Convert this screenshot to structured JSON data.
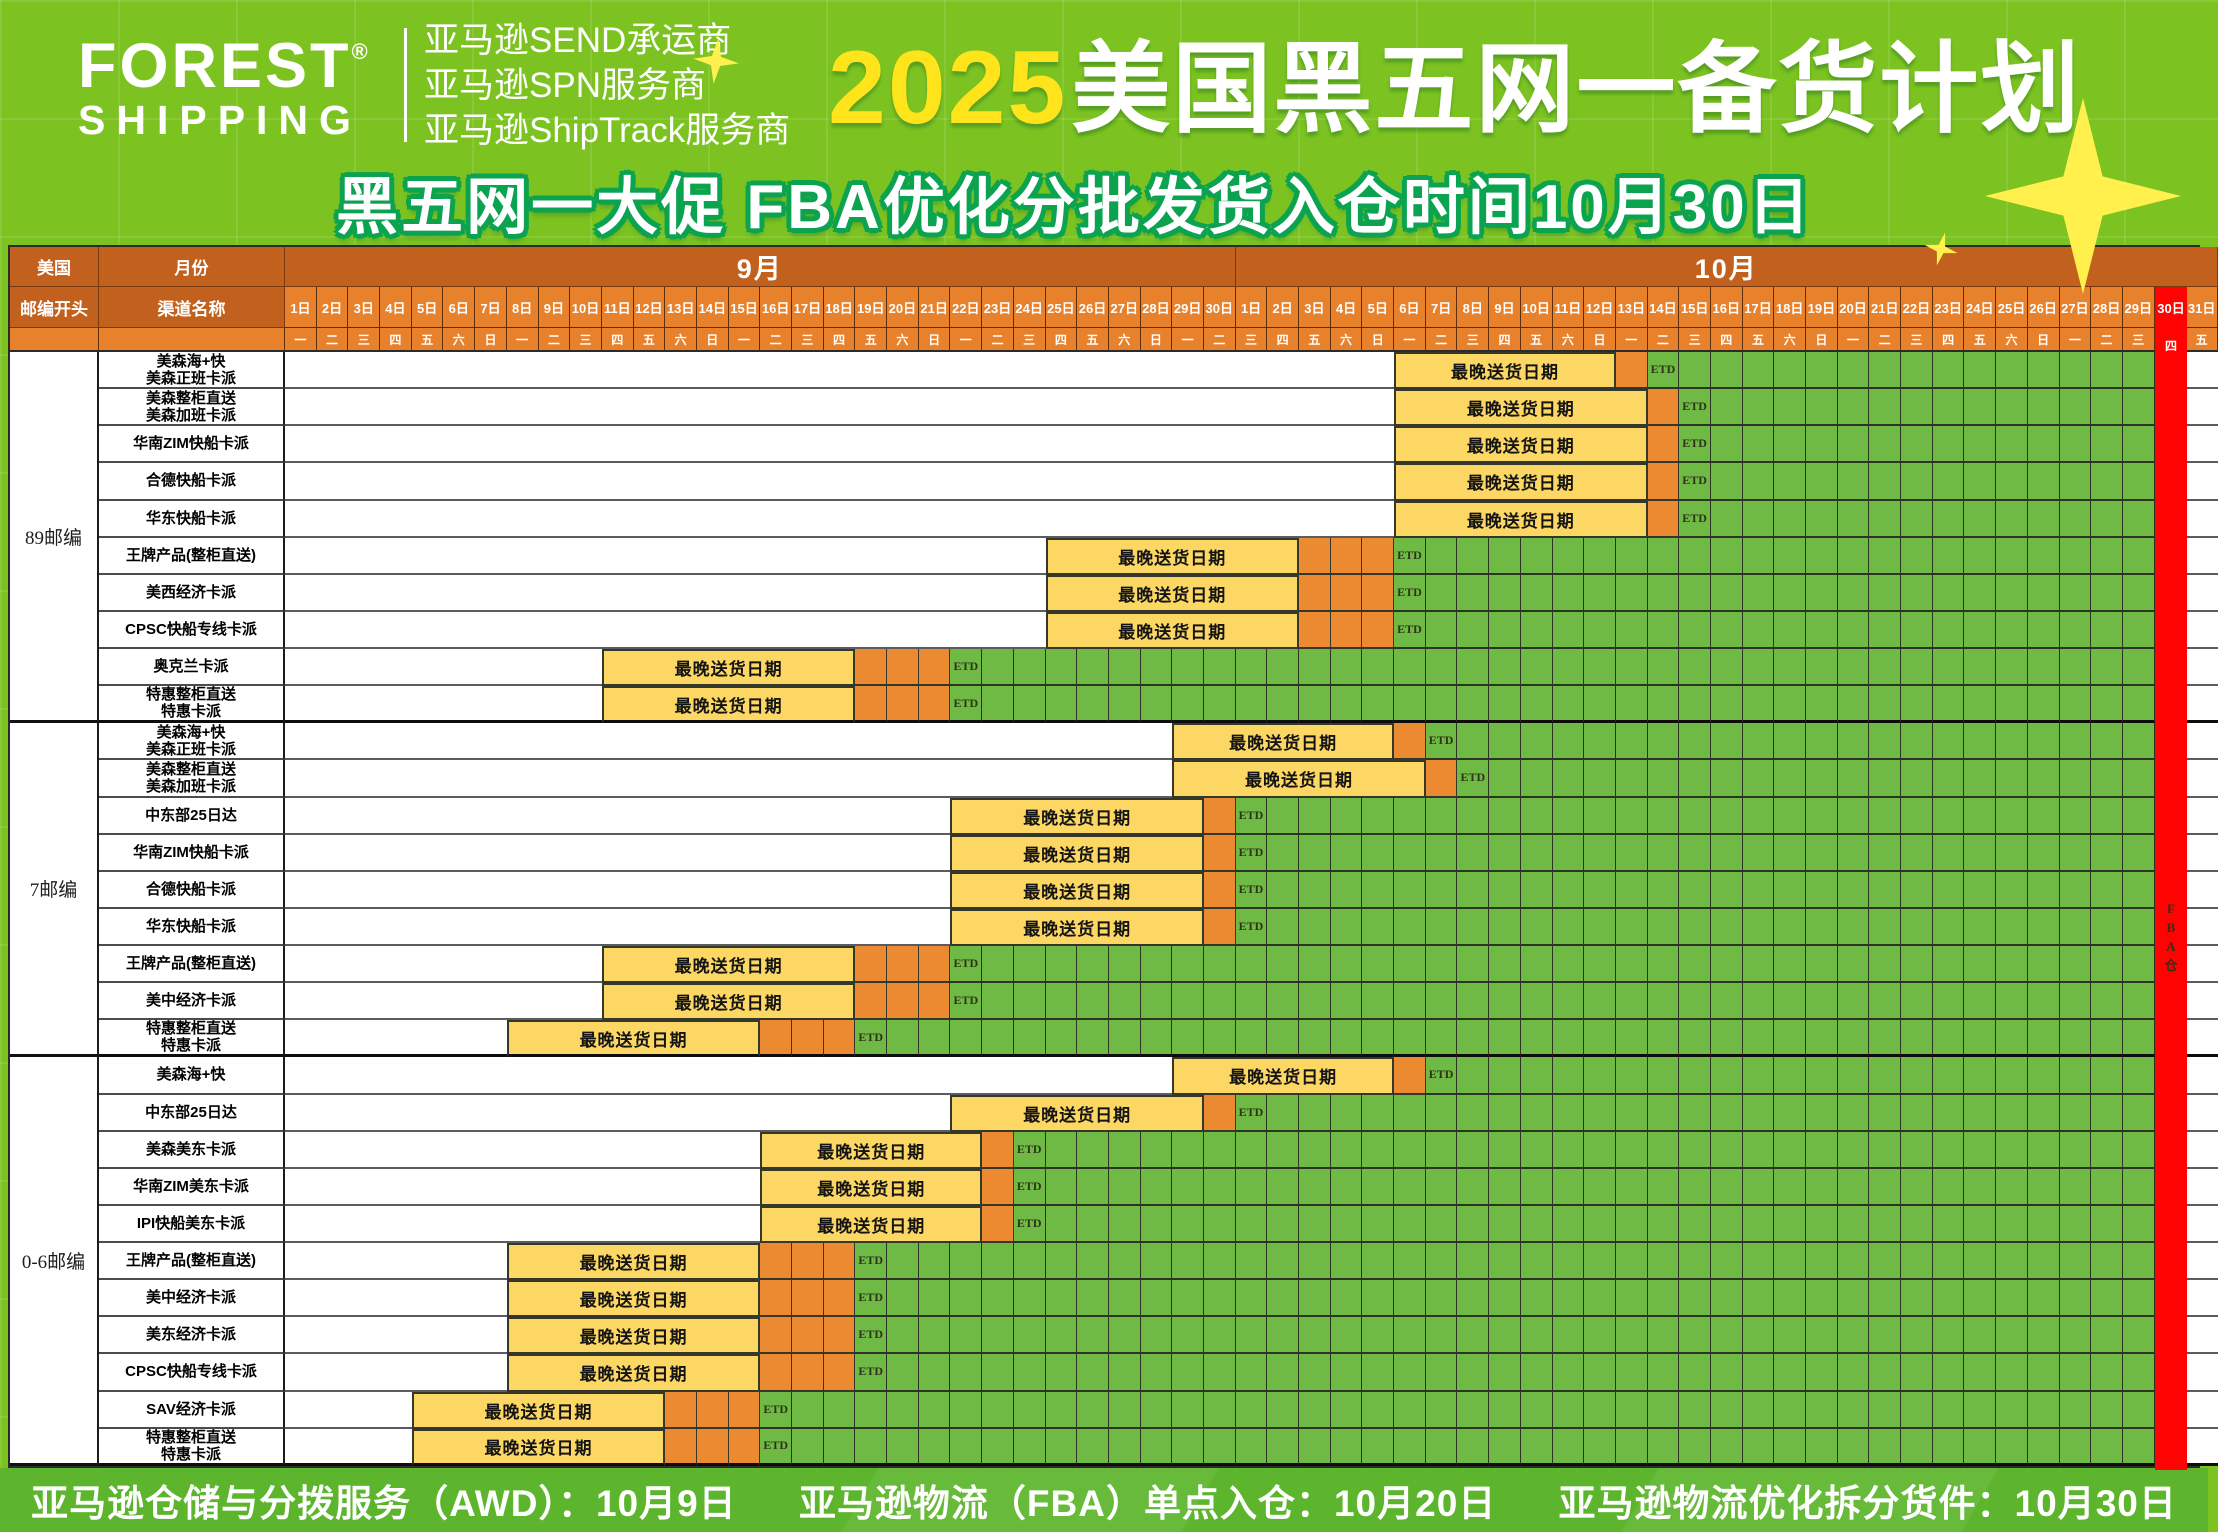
{
  "header": {
    "logo": {
      "line1": "FOREST",
      "line2": "SHIPPING",
      "reg": "®"
    },
    "services": [
      "亚马逊SEND承运商",
      "亚马逊SPN服务商",
      "亚马逊ShipTrack服务商"
    ],
    "title": {
      "year": "2025",
      "text": "美国黑五网一备货计划"
    },
    "subtitle": "黑五网一大促  FBA优化分批发货入仓时间10月30日"
  },
  "footer": {
    "items": [
      "亚马逊仓储与分拨服务（AWD）：10月9日",
      "亚马逊物流（FBA）单点入仓：10月20日",
      "亚马逊物流优化拆分货件：10月30日"
    ]
  },
  "colors": {
    "background_green": "#7cc321",
    "header_orange_dark": "#c2601d",
    "header_orange": "#e8812c",
    "bar_yellow": "#fcd763",
    "bar_orange": "#ec8a31",
    "cell_green": "#6eba45",
    "deadline_red": "#ff0202",
    "title_yellow": "#ffe41c",
    "footer_green": "#5db52d"
  },
  "chart_data": {
    "type": "table",
    "chart_style": "gantt",
    "title": "2025美国黑五网一备货计划",
    "subtitle": "黑五网一大促  FBA优化分批发货入仓时间10月30日",
    "corner": {
      "r1c1": "美国",
      "r1c2": "月份",
      "r2c1": "邮编开头",
      "r2c2": "渠道名称"
    },
    "labels": {
      "bar": "最晚送货日期",
      "etd": "ETD"
    },
    "months": [
      {
        "label": "9月",
        "days": 30
      },
      {
        "label": "10月",
        "days": 31
      }
    ],
    "day_labels": [
      "1日",
      "2日",
      "3日",
      "4日",
      "5日",
      "6日",
      "7日",
      "8日",
      "9日",
      "10日",
      "11日",
      "12日",
      "13日",
      "14日",
      "15日",
      "16日",
      "17日",
      "18日",
      "19日",
      "20日",
      "21日",
      "22日",
      "23日",
      "24日",
      "25日",
      "26日",
      "27日",
      "28日",
      "29日",
      "30日",
      "1日",
      "2日",
      "3日",
      "4日",
      "5日",
      "6日",
      "7日",
      "8日",
      "9日",
      "10日",
      "11日",
      "12日",
      "13日",
      "14日",
      "15日",
      "16日",
      "17日",
      "18日",
      "19日",
      "20日",
      "21日",
      "22日",
      "23日",
      "24日",
      "25日",
      "26日",
      "27日",
      "28日",
      "29日",
      "30日",
      "31日"
    ],
    "weekdays": [
      "一",
      "二",
      "三",
      "四",
      "五",
      "六",
      "日",
      "一",
      "二",
      "三",
      "四",
      "五",
      "六",
      "日",
      "一",
      "二",
      "三",
      "四",
      "五",
      "六",
      "日",
      "一",
      "二",
      "三",
      "四",
      "五",
      "六",
      "日",
      "一",
      "二",
      "三",
      "四",
      "五",
      "六",
      "日",
      "一",
      "二",
      "三",
      "四",
      "五",
      "六",
      "日",
      "一",
      "二",
      "三",
      "四",
      "五",
      "六",
      "日",
      "一",
      "二",
      "三",
      "四",
      "五",
      "六",
      "日",
      "一",
      "二",
      "三",
      "四",
      "五"
    ],
    "red_column": {
      "day_index": 59,
      "date": "10月30日",
      "vertical_label": "FBA仓"
    },
    "green_end_index": 58,
    "groups": [
      {
        "zip": "89邮编",
        "rows": [
          {
            "ch": [
              "美森海+快",
              "美森正班卡派"
            ],
            "ys": 35,
            "ye": 41,
            "os": 42,
            "oe": 42,
            "etd": 43,
            "window": "10月6日-10月12日",
            "sail": "10月13日",
            "etd_date": "10月14日"
          },
          {
            "ch": [
              "美森整柜直送",
              "美森加班卡派"
            ],
            "ys": 35,
            "ye": 42,
            "os": 43,
            "oe": 43,
            "etd": 44,
            "window": "10月6日-10月13日",
            "sail": "10月14日",
            "etd_date": "10月15日"
          },
          {
            "ch": [
              "华南ZIM快船卡派"
            ],
            "ys": 35,
            "ye": 42,
            "os": 43,
            "oe": 43,
            "etd": 44,
            "window": "10月6日-10月13日",
            "sail": "10月14日",
            "etd_date": "10月15日"
          },
          {
            "ch": [
              "合德快船卡派"
            ],
            "ys": 35,
            "ye": 42,
            "os": 43,
            "oe": 43,
            "etd": 44,
            "window": "10月6日-10月13日",
            "sail": "10月14日",
            "etd_date": "10月15日"
          },
          {
            "ch": [
              "华东快船卡派"
            ],
            "ys": 35,
            "ye": 42,
            "os": 43,
            "oe": 43,
            "etd": 44,
            "window": "10月6日-10月13日",
            "sail": "10月14日",
            "etd_date": "10月15日"
          },
          {
            "ch": [
              "王牌产品(整柜直送)"
            ],
            "ys": 24,
            "ye": 31,
            "os": 32,
            "oe": 34,
            "etd": 35,
            "window": "9月25日-10月2日",
            "sail": "10月3日-10月5日",
            "etd_date": "10月6日"
          },
          {
            "ch": [
              "美西经济卡派"
            ],
            "ys": 24,
            "ye": 31,
            "os": 32,
            "oe": 34,
            "etd": 35,
            "window": "9月25日-10月2日",
            "sail": "10月3日-10月5日",
            "etd_date": "10月6日"
          },
          {
            "ch": [
              "CPSC快船专线卡派"
            ],
            "ys": 24,
            "ye": 31,
            "os": 32,
            "oe": 34,
            "etd": 35,
            "window": "9月25日-10月2日",
            "sail": "10月3日-10月5日",
            "etd_date": "10月6日"
          },
          {
            "ch": [
              "奥克兰卡派"
            ],
            "ys": 10,
            "ye": 17,
            "os": 18,
            "oe": 20,
            "etd": 21,
            "window": "9月11日-9月18日",
            "sail": "9月19日-9月21日",
            "etd_date": "9月22日"
          },
          {
            "ch": [
              "特惠整柜直送",
              "特惠卡派"
            ],
            "ys": 10,
            "ye": 17,
            "os": 18,
            "oe": 20,
            "etd": 21,
            "window": "9月11日-9月18日",
            "sail": "9月19日-9月21日",
            "etd_date": "9月22日"
          }
        ]
      },
      {
        "zip": "7邮编",
        "rows": [
          {
            "ch": [
              "美森海+快",
              "美森正班卡派"
            ],
            "ys": 28,
            "ye": 34,
            "os": 35,
            "oe": 35,
            "etd": 36,
            "window": "9月29日-10月5日",
            "sail": "10月6日",
            "etd_date": "10月7日"
          },
          {
            "ch": [
              "美森整柜直送",
              "美森加班卡派"
            ],
            "ys": 28,
            "ye": 35,
            "os": 36,
            "oe": 36,
            "etd": 37,
            "window": "9月29日-10月6日",
            "sail": "10月7日",
            "etd_date": "10月8日"
          },
          {
            "ch": [
              "中东部25日达"
            ],
            "ys": 21,
            "ye": 28,
            "os": 29,
            "oe": 29,
            "etd": 30,
            "window": "9月22日-9月29日",
            "sail": "9月30日",
            "etd_date": "10月1日"
          },
          {
            "ch": [
              "华南ZIM快船卡派"
            ],
            "ys": 21,
            "ye": 28,
            "os": 29,
            "oe": 29,
            "etd": 30,
            "window": "9月22日-9月29日",
            "sail": "9月30日",
            "etd_date": "10月1日"
          },
          {
            "ch": [
              "合德快船卡派"
            ],
            "ys": 21,
            "ye": 28,
            "os": 29,
            "oe": 29,
            "etd": 30,
            "window": "9月22日-9月29日",
            "sail": "9月30日",
            "etd_date": "10月1日"
          },
          {
            "ch": [
              "华东快船卡派"
            ],
            "ys": 21,
            "ye": 28,
            "os": 29,
            "oe": 29,
            "etd": 30,
            "window": "9月22日-9月29日",
            "sail": "9月30日",
            "etd_date": "10月1日"
          },
          {
            "ch": [
              "王牌产品(整柜直送)"
            ],
            "ys": 10,
            "ye": 17,
            "os": 18,
            "oe": 20,
            "etd": 21,
            "window": "9月11日-9月18日",
            "sail": "9月19日-9月21日",
            "etd_date": "9月22日"
          },
          {
            "ch": [
              "美中经济卡派"
            ],
            "ys": 10,
            "ye": 17,
            "os": 18,
            "oe": 20,
            "etd": 21,
            "window": "9月11日-9月18日",
            "sail": "9月19日-9月21日",
            "etd_date": "9月22日"
          },
          {
            "ch": [
              "特惠整柜直送",
              "特惠卡派"
            ],
            "ys": 7,
            "ye": 14,
            "os": 15,
            "oe": 17,
            "etd": 18,
            "window": "9月8日-9月15日",
            "sail": "9月16日-9月18日",
            "etd_date": "9月19日"
          }
        ]
      },
      {
        "zip": "0-6邮编",
        "rows": [
          {
            "ch": [
              "美森海+快"
            ],
            "ys": 28,
            "ye": 34,
            "os": 35,
            "oe": 35,
            "etd": 36,
            "window": "9月29日-10月5日",
            "sail": "10月6日",
            "etd_date": "10月7日"
          },
          {
            "ch": [
              "中东部25日达"
            ],
            "ys": 21,
            "ye": 28,
            "os": 29,
            "oe": 29,
            "etd": 30,
            "window": "9月22日-9月29日",
            "sail": "9月30日",
            "etd_date": "10月1日"
          },
          {
            "ch": [
              "美森美东卡派"
            ],
            "ys": 15,
            "ye": 21,
            "os": 22,
            "oe": 22,
            "etd": 23,
            "window": "9月16日-9月22日",
            "sail": "9月23日",
            "etd_date": "9月24日"
          },
          {
            "ch": [
              "华南ZIM美东卡派"
            ],
            "ys": 15,
            "ye": 21,
            "os": 22,
            "oe": 22,
            "etd": 23,
            "window": "9月16日-9月22日",
            "sail": "9月23日",
            "etd_date": "9月24日"
          },
          {
            "ch": [
              "IPI快船美东卡派"
            ],
            "ys": 15,
            "ye": 21,
            "os": 22,
            "oe": 22,
            "etd": 23,
            "window": "9月16日-9月22日",
            "sail": "9月23日",
            "etd_date": "9月24日"
          },
          {
            "ch": [
              "王牌产品(整柜直送)"
            ],
            "ys": 7,
            "ye": 14,
            "os": 15,
            "oe": 17,
            "etd": 18,
            "window": "9月8日-9月15日",
            "sail": "9月16日-9月18日",
            "etd_date": "9月19日"
          },
          {
            "ch": [
              "美中经济卡派"
            ],
            "ys": 7,
            "ye": 14,
            "os": 15,
            "oe": 17,
            "etd": 18,
            "window": "9月8日-9月15日",
            "sail": "9月16日-9月18日",
            "etd_date": "9月19日"
          },
          {
            "ch": [
              "美东经济卡派"
            ],
            "ys": 7,
            "ye": 14,
            "os": 15,
            "oe": 17,
            "etd": 18,
            "window": "9月8日-9月15日",
            "sail": "9月16日-9月18日",
            "etd_date": "9月19日"
          },
          {
            "ch": [
              "CPSC快船专线卡派"
            ],
            "ys": 7,
            "ye": 14,
            "os": 15,
            "oe": 17,
            "etd": 18,
            "window": "9月8日-9月15日",
            "sail": "9月16日-9月18日",
            "etd_date": "9月19日"
          },
          {
            "ch": [
              "SAV经济卡派"
            ],
            "ys": 4,
            "ye": 11,
            "os": 12,
            "oe": 14,
            "etd": 15,
            "window": "9月5日-9月12日",
            "sail": "9月13日-9月15日",
            "etd_date": "9月16日"
          },
          {
            "ch": [
              "特惠整柜直送",
              "特惠卡派"
            ],
            "ys": 4,
            "ye": 11,
            "os": 12,
            "oe": 14,
            "etd": 15,
            "window": "9月5日-9月12日",
            "sail": "9月13日-9月15日",
            "etd_date": "9月16日"
          }
        ]
      }
    ]
  }
}
